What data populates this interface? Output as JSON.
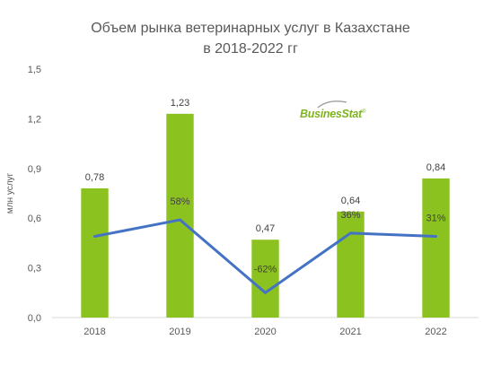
{
  "chart_data": {
    "type": "bar",
    "title": [
      "Объем рынка ветеринарных услуг в Казахстане",
      "в 2018-2022 гг"
    ],
    "ylabel": "млн услуг",
    "ylim": [
      0,
      1.5
    ],
    "yticks": [
      "0,0",
      "0,3",
      "0,6",
      "0,9",
      "1,2",
      "1,5"
    ],
    "categories": [
      "2018",
      "2019",
      "2020",
      "2021",
      "2022"
    ],
    "values": [
      0.78,
      1.23,
      0.47,
      0.64,
      0.84
    ],
    "value_labels": [
      "0,78",
      "1,23",
      "0,47",
      "0,64",
      "0,84"
    ],
    "growth_line": {
      "values": [
        0.49,
        0.59,
        0.15,
        0.51,
        0.49
      ],
      "labels": [
        "",
        "58%",
        "-62%",
        "36%",
        "31%"
      ]
    },
    "colors": {
      "bar": "#8cc21f",
      "line": "#4472c4",
      "text": "#595959",
      "grid": "#d9d9d9"
    },
    "grid": false,
    "legend": "none"
  },
  "watermark": {
    "text": "BusinesStat",
    "mark": "®"
  }
}
